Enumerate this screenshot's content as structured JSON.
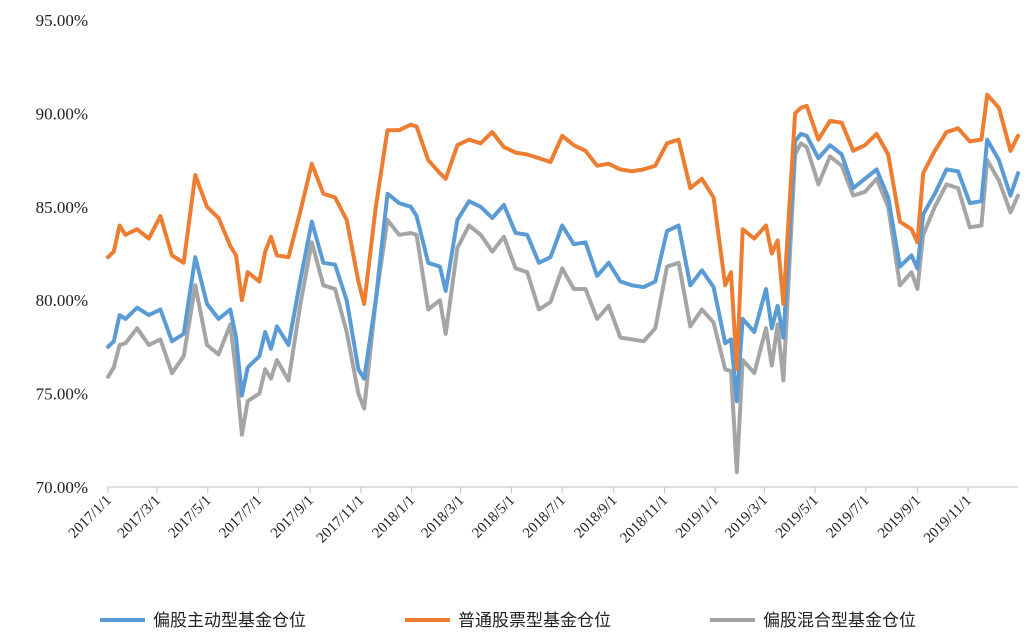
{
  "chart_data": {
    "type": "line",
    "title": "",
    "xlabel": "",
    "ylabel": "",
    "ylim": [
      70,
      95
    ],
    "y_ticks": [
      "70.00%",
      "75.00%",
      "80.00%",
      "85.00%",
      "90.00%",
      "95.00%"
    ],
    "x_tick_labels": [
      "2017/1/1",
      "2017/3/1",
      "2017/5/1",
      "2017/7/1",
      "2017/9/1",
      "2017/11/1",
      "2018/1/1",
      "2018/3/1",
      "2018/5/1",
      "2018/7/1",
      "2018/9/1",
      "2018/11/1",
      "2019/1/1",
      "2019/3/1",
      "2019/5/1",
      "2019/7/1",
      "2019/9/1",
      "2019/11/1"
    ],
    "x_range": [
      "2017/1/1",
      "2019/12/31"
    ],
    "legend_position": "bottom",
    "grid": false,
    "series": [
      {
        "name": "偏股主动型基金仓位",
        "color": "#5b9bd5",
        "points": [
          [
            "2017/1/1",
            77.5
          ],
          [
            "2017/1/8",
            77.8
          ],
          [
            "2017/1/15",
            79.2
          ],
          [
            "2017/1/22",
            79.0
          ],
          [
            "2017/2/5",
            79.6
          ],
          [
            "2017/2/19",
            79.2
          ],
          [
            "2017/3/5",
            79.5
          ],
          [
            "2017/3/19",
            77.8
          ],
          [
            "2017/4/2",
            78.2
          ],
          [
            "2017/4/16",
            82.3
          ],
          [
            "2017/4/30",
            79.8
          ],
          [
            "2017/5/14",
            79.0
          ],
          [
            "2017/5/28",
            79.5
          ],
          [
            "2017/6/4",
            78.0
          ],
          [
            "2017/6/11",
            74.9
          ],
          [
            "2017/6/18",
            76.4
          ],
          [
            "2017/7/2",
            77.0
          ],
          [
            "2017/7/9",
            78.3
          ],
          [
            "2017/7/16",
            77.4
          ],
          [
            "2017/7/23",
            78.6
          ],
          [
            "2017/8/6",
            77.6
          ],
          [
            "2017/8/20",
            81.0
          ],
          [
            "2017/9/3",
            84.2
          ],
          [
            "2017/9/17",
            82.0
          ],
          [
            "2017/10/1",
            81.9
          ],
          [
            "2017/10/15",
            80.0
          ],
          [
            "2017/10/29",
            76.3
          ],
          [
            "2017/11/5",
            75.8
          ],
          [
            "2017/11/19",
            80.0
          ],
          [
            "2017/12/3",
            85.7
          ],
          [
            "2017/12/17",
            85.2
          ],
          [
            "2017/12/31",
            85.0
          ],
          [
            "2018/1/7",
            84.5
          ],
          [
            "2018/1/21",
            82.0
          ],
          [
            "2018/2/4",
            81.8
          ],
          [
            "2018/2/11",
            80.5
          ],
          [
            "2018/2/25",
            84.3
          ],
          [
            "2018/3/11",
            85.3
          ],
          [
            "2018/3/25",
            85.0
          ],
          [
            "2018/4/8",
            84.4
          ],
          [
            "2018/4/22",
            85.1
          ],
          [
            "2018/5/6",
            83.6
          ],
          [
            "2018/5/20",
            83.5
          ],
          [
            "2018/6/3",
            82.0
          ],
          [
            "2018/6/17",
            82.3
          ],
          [
            "2018/7/1",
            84.0
          ],
          [
            "2018/7/15",
            83.0
          ],
          [
            "2018/7/29",
            83.1
          ],
          [
            "2018/8/12",
            81.3
          ],
          [
            "2018/8/26",
            82.0
          ],
          [
            "2018/9/9",
            81.0
          ],
          [
            "2018/9/23",
            80.8
          ],
          [
            "2018/10/7",
            80.7
          ],
          [
            "2018/10/21",
            81.0
          ],
          [
            "2018/11/4",
            83.7
          ],
          [
            "2018/11/18",
            84.0
          ],
          [
            "2018/12/2",
            80.8
          ],
          [
            "2018/12/16",
            81.6
          ],
          [
            "2018/12/30",
            80.7
          ],
          [
            "2019/1/13",
            77.7
          ],
          [
            "2019/1/20",
            77.9
          ],
          [
            "2019/1/27",
            74.6
          ],
          [
            "2019/2/3",
            79.0
          ],
          [
            "2019/2/17",
            78.3
          ],
          [
            "2019/3/3",
            80.6
          ],
          [
            "2019/3/10",
            78.5
          ],
          [
            "2019/3/17",
            79.7
          ],
          [
            "2019/3/24",
            78.0
          ],
          [
            "2019/4/7",
            88.5
          ],
          [
            "2019/4/14",
            88.9
          ],
          [
            "2019/4/21",
            88.8
          ],
          [
            "2019/5/5",
            87.6
          ],
          [
            "2019/5/19",
            88.3
          ],
          [
            "2019/6/2",
            87.8
          ],
          [
            "2019/6/16",
            86.0
          ],
          [
            "2019/6/30",
            86.5
          ],
          [
            "2019/7/14",
            87.0
          ],
          [
            "2019/7/28",
            85.5
          ],
          [
            "2019/8/11",
            81.8
          ],
          [
            "2019/8/25",
            82.4
          ],
          [
            "2019/9/1",
            81.7
          ],
          [
            "2019/9/8",
            84.6
          ],
          [
            "2019/9/22",
            85.7
          ],
          [
            "2019/10/6",
            87.0
          ],
          [
            "2019/10/20",
            86.9
          ],
          [
            "2019/11/3",
            85.2
          ],
          [
            "2019/11/17",
            85.3
          ],
          [
            "2019/11/24",
            88.6
          ],
          [
            "2019/12/8",
            87.5
          ],
          [
            "2019/12/22",
            85.6
          ],
          [
            "2019/12/31",
            86.8
          ]
        ]
      },
      {
        "name": "普通股票型基金仓位",
        "color": "#ed7d31",
        "points": [
          [
            "2017/1/1",
            82.3
          ],
          [
            "2017/1/8",
            82.6
          ],
          [
            "2017/1/15",
            84.0
          ],
          [
            "2017/1/22",
            83.5
          ],
          [
            "2017/2/5",
            83.8
          ],
          [
            "2017/2/19",
            83.3
          ],
          [
            "2017/3/5",
            84.5
          ],
          [
            "2017/3/19",
            82.4
          ],
          [
            "2017/4/2",
            82.0
          ],
          [
            "2017/4/16",
            86.7
          ],
          [
            "2017/4/30",
            85.0
          ],
          [
            "2017/5/14",
            84.4
          ],
          [
            "2017/5/28",
            82.9
          ],
          [
            "2017/6/4",
            82.4
          ],
          [
            "2017/6/11",
            80.0
          ],
          [
            "2017/6/18",
            81.5
          ],
          [
            "2017/7/2",
            81.0
          ],
          [
            "2017/7/9",
            82.6
          ],
          [
            "2017/7/16",
            83.4
          ],
          [
            "2017/7/23",
            82.4
          ],
          [
            "2017/8/6",
            82.3
          ],
          [
            "2017/8/20",
            84.7
          ],
          [
            "2017/9/3",
            87.3
          ],
          [
            "2017/9/17",
            85.7
          ],
          [
            "2017/10/1",
            85.5
          ],
          [
            "2017/10/15",
            84.3
          ],
          [
            "2017/10/29",
            81.0
          ],
          [
            "2017/11/5",
            79.8
          ],
          [
            "2017/11/19",
            85.0
          ],
          [
            "2017/12/3",
            89.1
          ],
          [
            "2017/12/17",
            89.1
          ],
          [
            "2017/12/31",
            89.4
          ],
          [
            "2018/1/7",
            89.3
          ],
          [
            "2018/1/21",
            87.5
          ],
          [
            "2018/2/4",
            86.8
          ],
          [
            "2018/2/11",
            86.5
          ],
          [
            "2018/2/25",
            88.3
          ],
          [
            "2018/3/11",
            88.6
          ],
          [
            "2018/3/25",
            88.4
          ],
          [
            "2018/4/8",
            89.0
          ],
          [
            "2018/4/22",
            88.2
          ],
          [
            "2018/5/6",
            87.9
          ],
          [
            "2018/5/20",
            87.8
          ],
          [
            "2018/6/3",
            87.6
          ],
          [
            "2018/6/17",
            87.4
          ],
          [
            "2018/7/1",
            88.8
          ],
          [
            "2018/7/15",
            88.3
          ],
          [
            "2018/7/29",
            88.0
          ],
          [
            "2018/8/12",
            87.2
          ],
          [
            "2018/8/26",
            87.3
          ],
          [
            "2018/9/9",
            87.0
          ],
          [
            "2018/9/23",
            86.9
          ],
          [
            "2018/10/7",
            87.0
          ],
          [
            "2018/10/21",
            87.2
          ],
          [
            "2018/11/4",
            88.4
          ],
          [
            "2018/11/18",
            88.6
          ],
          [
            "2018/12/2",
            86.0
          ],
          [
            "2018/12/16",
            86.5
          ],
          [
            "2018/12/30",
            85.5
          ],
          [
            "2019/1/13",
            80.8
          ],
          [
            "2019/1/20",
            81.5
          ],
          [
            "2019/1/27",
            76.3
          ],
          [
            "2019/2/3",
            83.8
          ],
          [
            "2019/2/17",
            83.3
          ],
          [
            "2019/3/3",
            84.0
          ],
          [
            "2019/3/10",
            82.5
          ],
          [
            "2019/3/17",
            83.2
          ],
          [
            "2019/3/24",
            79.8
          ],
          [
            "2019/4/7",
            90.0
          ],
          [
            "2019/4/14",
            90.3
          ],
          [
            "2019/4/21",
            90.4
          ],
          [
            "2019/5/5",
            88.6
          ],
          [
            "2019/5/19",
            89.6
          ],
          [
            "2019/6/2",
            89.5
          ],
          [
            "2019/6/16",
            88.0
          ],
          [
            "2019/6/30",
            88.3
          ],
          [
            "2019/7/14",
            88.9
          ],
          [
            "2019/7/28",
            87.8
          ],
          [
            "2019/8/11",
            84.2
          ],
          [
            "2019/8/25",
            83.8
          ],
          [
            "2019/9/1",
            83.1
          ],
          [
            "2019/9/8",
            86.8
          ],
          [
            "2019/9/22",
            88.0
          ],
          [
            "2019/10/6",
            89.0
          ],
          [
            "2019/10/20",
            89.2
          ],
          [
            "2019/11/3",
            88.5
          ],
          [
            "2019/11/17",
            88.6
          ],
          [
            "2019/11/24",
            91.0
          ],
          [
            "2019/12/8",
            90.3
          ],
          [
            "2019/12/22",
            88.0
          ],
          [
            "2019/12/31",
            88.8
          ]
        ]
      },
      {
        "name": "偏股混合型基金仓位",
        "color": "#a5a5a5",
        "points": [
          [
            "2017/1/1",
            75.9
          ],
          [
            "2017/1/8",
            76.4
          ],
          [
            "2017/1/15",
            77.6
          ],
          [
            "2017/1/22",
            77.7
          ],
          [
            "2017/2/5",
            78.5
          ],
          [
            "2017/2/19",
            77.6
          ],
          [
            "2017/3/5",
            77.9
          ],
          [
            "2017/3/19",
            76.1
          ],
          [
            "2017/4/2",
            77.0
          ],
          [
            "2017/4/16",
            80.8
          ],
          [
            "2017/4/30",
            77.6
          ],
          [
            "2017/5/14",
            77.1
          ],
          [
            "2017/5/28",
            78.7
          ],
          [
            "2017/6/4",
            76.1
          ],
          [
            "2017/6/11",
            72.8
          ],
          [
            "2017/6/18",
            74.6
          ],
          [
            "2017/7/2",
            75.0
          ],
          [
            "2017/7/9",
            76.3
          ],
          [
            "2017/7/16",
            75.8
          ],
          [
            "2017/7/23",
            76.8
          ],
          [
            "2017/8/6",
            75.7
          ],
          [
            "2017/8/20",
            79.7
          ],
          [
            "2017/9/3",
            83.1
          ],
          [
            "2017/9/17",
            80.8
          ],
          [
            "2017/10/1",
            80.6
          ],
          [
            "2017/10/15",
            78.3
          ],
          [
            "2017/10/29",
            75.0
          ],
          [
            "2017/11/5",
            74.2
          ],
          [
            "2017/11/19",
            80.0
          ],
          [
            "2017/12/3",
            84.3
          ],
          [
            "2017/12/17",
            83.5
          ],
          [
            "2017/12/31",
            83.6
          ],
          [
            "2018/1/7",
            83.5
          ],
          [
            "2018/1/21",
            79.5
          ],
          [
            "2018/2/4",
            80.0
          ],
          [
            "2018/2/11",
            78.2
          ],
          [
            "2018/2/25",
            82.8
          ],
          [
            "2018/3/11",
            84.0
          ],
          [
            "2018/3/25",
            83.5
          ],
          [
            "2018/4/8",
            82.6
          ],
          [
            "2018/4/22",
            83.4
          ],
          [
            "2018/5/6",
            81.7
          ],
          [
            "2018/5/20",
            81.5
          ],
          [
            "2018/6/3",
            79.5
          ],
          [
            "2018/6/17",
            79.9
          ],
          [
            "2018/7/1",
            81.7
          ],
          [
            "2018/7/15",
            80.6
          ],
          [
            "2018/7/29",
            80.6
          ],
          [
            "2018/8/12",
            79.0
          ],
          [
            "2018/8/26",
            79.7
          ],
          [
            "2018/9/9",
            78.0
          ],
          [
            "2018/9/23",
            77.9
          ],
          [
            "2018/10/7",
            77.8
          ],
          [
            "2018/10/21",
            78.5
          ],
          [
            "2018/11/4",
            81.8
          ],
          [
            "2018/11/18",
            82.0
          ],
          [
            "2018/12/2",
            78.6
          ],
          [
            "2018/12/16",
            79.5
          ],
          [
            "2018/12/30",
            78.8
          ],
          [
            "2019/1/13",
            76.3
          ],
          [
            "2019/1/20",
            76.2
          ],
          [
            "2019/1/27",
            70.8
          ],
          [
            "2019/2/3",
            76.8
          ],
          [
            "2019/2/17",
            76.1
          ],
          [
            "2019/3/3",
            78.5
          ],
          [
            "2019/3/10",
            76.5
          ],
          [
            "2019/3/17",
            78.7
          ],
          [
            "2019/3/24",
            75.7
          ],
          [
            "2019/4/7",
            87.8
          ],
          [
            "2019/4/14",
            88.4
          ],
          [
            "2019/4/21",
            88.2
          ],
          [
            "2019/5/5",
            86.2
          ],
          [
            "2019/5/19",
            87.7
          ],
          [
            "2019/6/2",
            87.2
          ],
          [
            "2019/6/16",
            85.6
          ],
          [
            "2019/6/30",
            85.8
          ],
          [
            "2019/7/14",
            86.5
          ],
          [
            "2019/7/28",
            85.0
          ],
          [
            "2019/8/11",
            80.8
          ],
          [
            "2019/8/25",
            81.5
          ],
          [
            "2019/9/1",
            80.6
          ],
          [
            "2019/9/8",
            83.5
          ],
          [
            "2019/9/22",
            85.0
          ],
          [
            "2019/10/6",
            86.2
          ],
          [
            "2019/10/20",
            86.0
          ],
          [
            "2019/11/3",
            83.9
          ],
          [
            "2019/11/17",
            84.0
          ],
          [
            "2019/11/24",
            87.5
          ],
          [
            "2019/12/8",
            86.4
          ],
          [
            "2019/12/22",
            84.7
          ],
          [
            "2019/12/31",
            85.6
          ]
        ]
      }
    ]
  }
}
